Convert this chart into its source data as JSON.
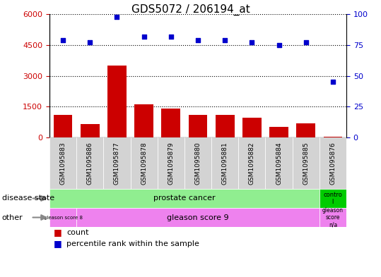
{
  "title": "GDS5072 / 206194_at",
  "samples": [
    "GSM1095883",
    "GSM1095886",
    "GSM1095877",
    "GSM1095878",
    "GSM1095879",
    "GSM1095880",
    "GSM1095881",
    "GSM1095882",
    "GSM1095884",
    "GSM1095885",
    "GSM1095876"
  ],
  "counts": [
    1100,
    650,
    3500,
    1600,
    1400,
    1100,
    1100,
    950,
    500,
    700,
    30
  ],
  "percentiles": [
    79,
    77,
    98,
    82,
    82,
    79,
    79,
    77,
    75,
    77,
    45
  ],
  "bar_color": "#cc0000",
  "dot_color": "#0000cc",
  "ylim_left": [
    0,
    6000
  ],
  "ylim_right": [
    0,
    100
  ],
  "yticks_left": [
    0,
    1500,
    3000,
    4500,
    6000
  ],
  "yticks_right": [
    0,
    25,
    50,
    75,
    100
  ],
  "prostate_color": "#90EE90",
  "control_color": "#00cc00",
  "gleason_color": "#EE82EE",
  "grid_color": "#000000",
  "tick_color_left": "#cc0000",
  "tick_color_right": "#0000cc",
  "bg_color": "#ffffff",
  "legend_items": [
    {
      "color": "#cc0000",
      "label": "count"
    },
    {
      "color": "#0000cc",
      "label": "percentile rank within the sample"
    }
  ]
}
